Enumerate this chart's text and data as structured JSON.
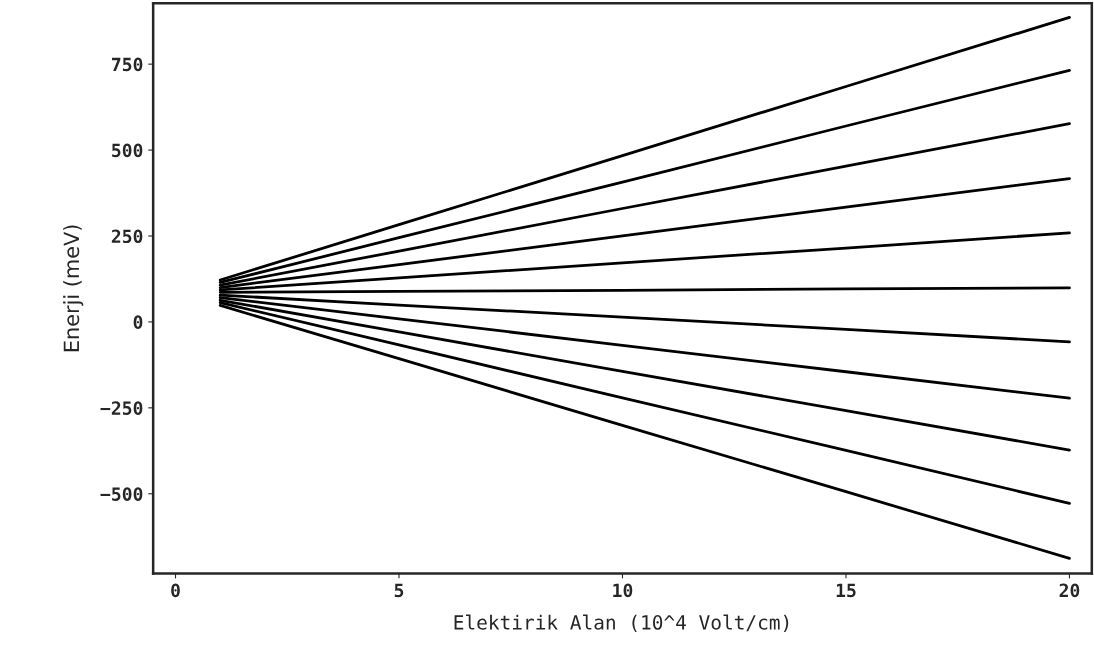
{
  "chart_data": {
    "type": "line",
    "xlabel": "Elektirik Alan (10^4 Volt/cm)",
    "ylabel": "Enerji (meV)",
    "xlim": [
      -0.5,
      20.5
    ],
    "ylim": [
      -732,
      927
    ],
    "xticks": [
      0,
      5,
      10,
      15,
      20
    ],
    "yticks": [
      -500,
      -250,
      0,
      250,
      500,
      750
    ],
    "grid": false,
    "legend": false,
    "marker": "none",
    "line_style": "solid",
    "x": [
      1,
      5,
      10,
      15,
      20
    ],
    "series": [
      {
        "color": "#000000",
        "values": [
          122,
          283,
          484,
          685,
          886
        ]
      },
      {
        "color": "#000000",
        "values": [
          115,
          245,
          407,
          570,
          732
        ]
      },
      {
        "color": "#000000",
        "values": [
          107,
          206,
          330,
          453,
          577
        ]
      },
      {
        "color": "#000000",
        "values": [
          100,
          167,
          250,
          334,
          417
        ]
      },
      {
        "color": "#000000",
        "values": [
          93,
          128,
          172,
          215,
          259
        ]
      },
      {
        "color": "#000000",
        "values": [
          86,
          89,
          92,
          96,
          99
        ]
      },
      {
        "color": "#000000",
        "values": [
          78,
          49,
          14,
          -22,
          -58
        ]
      },
      {
        "color": "#000000",
        "values": [
          71,
          9,
          -68,
          -145,
          -222
        ]
      },
      {
        "color": "#000000",
        "values": [
          63,
          -29,
          -144,
          -258,
          -373
        ]
      },
      {
        "color": "#000000",
        "values": [
          56,
          -67,
          -221,
          -374,
          -528
        ]
      },
      {
        "color": "#000000",
        "values": [
          48,
          -107,
          -301,
          -494,
          -688
        ]
      }
    ]
  }
}
